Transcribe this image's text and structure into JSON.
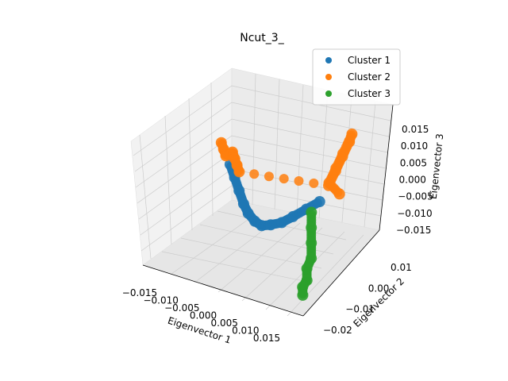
{
  "chart_data": {
    "type": "scatter",
    "projection": "3d",
    "title": "Ncut_3_",
    "xlabel": "Eigenvector 1",
    "ylabel": "Eigenvector 2",
    "zlabel": "Eigenvector 3",
    "xlim": [
      -0.018,
      0.018
    ],
    "ylim": [
      -0.024,
      0.018
    ],
    "zlim": [
      -0.017,
      0.02
    ],
    "xticks": [
      "−0.015",
      "−0.010",
      "−0.005",
      "0.000",
      "0.005",
      "0.010",
      "0.015"
    ],
    "yticks": [
      "−0.02",
      "−0.01",
      "0.00",
      "0.01"
    ],
    "zticks": [
      "−0.015",
      "−0.010",
      "−0.005",
      "0.000",
      "0.005",
      "0.010",
      "0.015"
    ],
    "grid": true,
    "legend_position": "top-right",
    "series": [
      {
        "name": "Cluster 1",
        "color": "#1f77b4",
        "points": [
          [
            -0.013,
            0.006,
            0.0
          ],
          [
            -0.011,
            0.004,
            -0.002
          ],
          [
            -0.009,
            0.002,
            -0.004
          ],
          [
            -0.007,
            0.0,
            -0.006
          ],
          [
            -0.005,
            -0.002,
            -0.007
          ],
          [
            -0.003,
            -0.003,
            -0.008
          ],
          [
            -0.001,
            -0.004,
            -0.008
          ],
          [
            0.001,
            -0.004,
            -0.007
          ],
          [
            0.003,
            -0.003,
            -0.006
          ],
          [
            0.005,
            -0.002,
            -0.004
          ],
          [
            0.007,
            0.0,
            -0.002
          ],
          [
            0.009,
            0.002,
            0.0
          ]
        ]
      },
      {
        "name": "Cluster 2",
        "color": "#ff7f0e",
        "points": [
          [
            -0.016,
            0.008,
            0.004
          ],
          [
            -0.015,
            0.007,
            0.003
          ],
          [
            -0.014,
            0.006,
            0.002
          ],
          [
            -0.013,
            0.007,
            0.003
          ],
          [
            -0.012,
            0.006,
            0.002
          ],
          [
            -0.011,
            0.005,
            0.001
          ],
          [
            -0.01,
            0.004,
            0.0
          ],
          [
            0.01,
            0.004,
            0.004
          ],
          [
            0.011,
            0.005,
            0.008
          ],
          [
            0.012,
            0.006,
            0.012
          ],
          [
            0.013,
            0.007,
            0.016
          ],
          [
            0.014,
            0.006,
            0.019
          ],
          [
            0.013,
            0.004,
            0.014
          ],
          [
            0.012,
            0.003,
            0.01
          ],
          [
            0.011,
            0.002,
            0.006
          ],
          [
            0.012,
            0.005,
            0.002
          ]
        ]
      },
      {
        "name": "Cluster 3",
        "color": "#2ca02c",
        "points": [
          [
            0.01,
            -0.004,
            0.0
          ],
          [
            0.011,
            -0.006,
            -0.003
          ],
          [
            0.012,
            -0.008,
            -0.006
          ],
          [
            0.013,
            -0.01,
            -0.009
          ],
          [
            0.013,
            -0.012,
            -0.011
          ],
          [
            0.014,
            -0.014,
            -0.013
          ],
          [
            0.014,
            -0.016,
            -0.014
          ],
          [
            0.015,
            -0.018,
            -0.015
          ]
        ]
      }
    ]
  }
}
